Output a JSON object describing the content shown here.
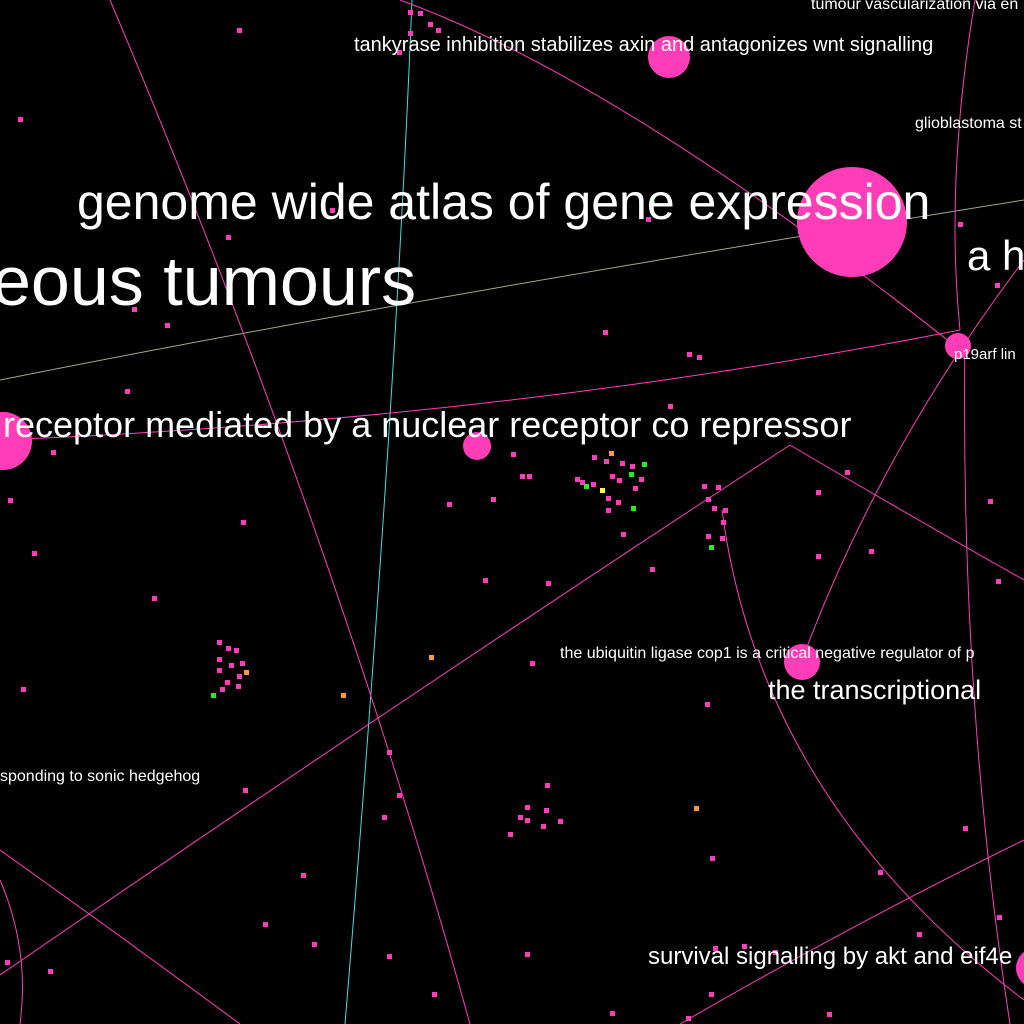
{
  "colors": {
    "background": "#000000",
    "node": "#ff3db8",
    "node_alt_green": "#22ee22",
    "node_alt_orange": "#ff9933",
    "node_alt_yellow": "#ffff33",
    "edge": "#ff3db8",
    "edge_cyan": "#44dddd",
    "edge_faint": "#b8c8a8",
    "label": "#ffffff"
  },
  "labels": {
    "tumour_vascularization": "tumour vascularization via en",
    "tankyrase": "tankyrase inhibition stabilizes axin and antagonizes wnt signalling",
    "glioblastoma": "glioblastoma st",
    "genome_atlas": "genome wide atlas of gene expression",
    "a_h": "a h",
    "eous_tumours": "eous tumours",
    "p19arf": "p19arf lin",
    "nuclear_receptor": "receptor mediated by a nuclear receptor co repressor",
    "cop1": "the ubiquitin ligase cop1 is a critical negative regulator of p",
    "transcriptional": "the transcriptional",
    "sonic_hedgehog": "sponding to sonic hedgehog",
    "akt_eif4": "survival signalling by akt and eif4e"
  }
}
